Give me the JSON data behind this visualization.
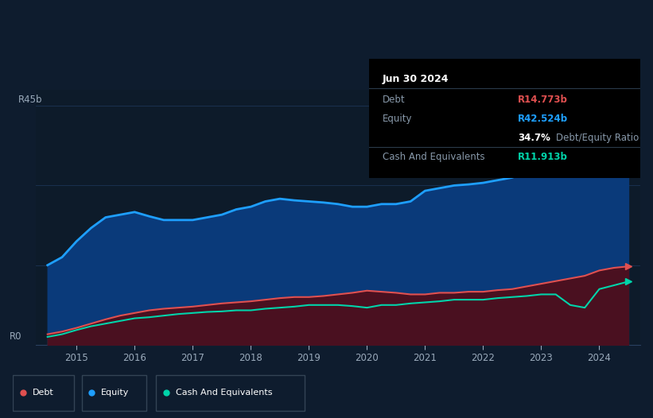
{
  "bg_color": "#0e1c2e",
  "plot_bg_color": "#0d1b2a",
  "grid_color": "#1a3050",
  "equity_color": "#1e9fff",
  "debt_color": "#e05050",
  "cash_color": "#00d4aa",
  "equity_fill_color": "#0a3a7a",
  "debt_fill_color": "#4a1020",
  "cash_fill_color": "#0a3530",
  "years": [
    2014.5,
    2014.75,
    2015.0,
    2015.25,
    2015.5,
    2015.75,
    2016.0,
    2016.25,
    2016.5,
    2016.75,
    2017.0,
    2017.25,
    2017.5,
    2017.75,
    2018.0,
    2018.25,
    2018.5,
    2018.75,
    2019.0,
    2019.25,
    2019.5,
    2019.75,
    2020.0,
    2020.25,
    2020.5,
    2020.75,
    2021.0,
    2021.25,
    2021.5,
    2021.75,
    2022.0,
    2022.25,
    2022.5,
    2022.75,
    2023.0,
    2023.25,
    2023.5,
    2023.75,
    2024.0,
    2024.25,
    2024.5
  ],
  "equity": [
    15.0,
    16.5,
    19.5,
    22.0,
    24.0,
    24.5,
    25.0,
    24.2,
    23.5,
    23.5,
    23.5,
    24.0,
    24.5,
    25.5,
    26.0,
    27.0,
    27.5,
    27.2,
    27.0,
    26.8,
    26.5,
    26.0,
    26.0,
    26.5,
    26.5,
    27.0,
    29.0,
    29.5,
    30.0,
    30.2,
    30.5,
    31.0,
    31.5,
    32.5,
    33.0,
    35.0,
    38.5,
    40.0,
    41.5,
    42.0,
    42.524
  ],
  "debt": [
    2.0,
    2.5,
    3.2,
    4.0,
    4.8,
    5.5,
    6.0,
    6.5,
    6.8,
    7.0,
    7.2,
    7.5,
    7.8,
    8.0,
    8.2,
    8.5,
    8.8,
    9.0,
    9.0,
    9.2,
    9.5,
    9.8,
    10.2,
    10.0,
    9.8,
    9.5,
    9.5,
    9.8,
    9.8,
    10.0,
    10.0,
    10.3,
    10.5,
    11.0,
    11.5,
    12.0,
    12.5,
    13.0,
    14.0,
    14.5,
    14.773
  ],
  "cash": [
    1.5,
    2.0,
    2.8,
    3.5,
    4.0,
    4.5,
    5.0,
    5.2,
    5.5,
    5.8,
    6.0,
    6.2,
    6.3,
    6.5,
    6.5,
    6.8,
    7.0,
    7.2,
    7.5,
    7.5,
    7.5,
    7.3,
    7.0,
    7.5,
    7.5,
    7.8,
    8.0,
    8.2,
    8.5,
    8.5,
    8.5,
    8.8,
    9.0,
    9.2,
    9.5,
    9.5,
    7.5,
    7.0,
    10.5,
    11.2,
    11.913
  ],
  "xlim_lo": 2014.3,
  "xlim_hi": 2024.7,
  "ylim_lo": 0,
  "ylim_hi": 48,
  "xticks": [
    2015,
    2016,
    2017,
    2018,
    2019,
    2020,
    2021,
    2022,
    2023,
    2024
  ],
  "y_label_top": "R45b",
  "y_label_bot": "R0",
  "tooltip_date": "Jun 30 2024",
  "tooltip_debt_val": "R14.773b",
  "tooltip_equity_val": "R42.524b",
  "tooltip_ratio": "34.7%",
  "tooltip_cash_val": "R11.913b",
  "legend_labels": [
    "Debt",
    "Equity",
    "Cash And Equivalents"
  ],
  "legend_colors": [
    "#e05050",
    "#1e9fff",
    "#00d4aa"
  ],
  "divider_color": "#2a3a4a"
}
